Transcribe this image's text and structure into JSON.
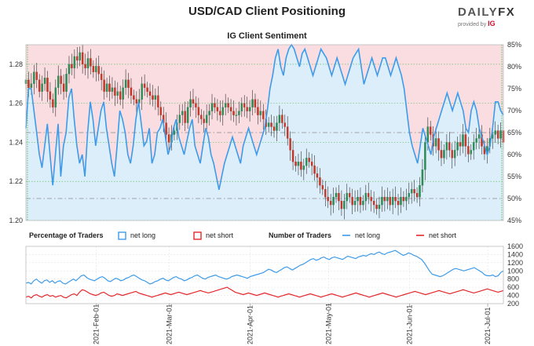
{
  "header": {
    "title": "USD/CAD Client Positioning",
    "subtitle": "IG Client Sentiment",
    "logo_daily": "DAILY",
    "logo_fx": "FX",
    "logo_provided": "provided by",
    "logo_ig": "IG"
  },
  "legend": {
    "percentage_title": "Percentage of Traders",
    "pct_net_long": "net long",
    "pct_net_short": "net short",
    "number_title": "Number of Traders",
    "num_net_long": "net long",
    "num_net_short": "net short"
  },
  "colors": {
    "long": "#3d9be9",
    "short": "#e3282b",
    "long_fill": "#ddeefb",
    "short_fill": "#f9dde1",
    "candle_up": "#2e8b57",
    "candle_down": "#c0392b",
    "grid_green": "#6abf69"
  },
  "chart_data": {
    "type": "line",
    "title": "USD/CAD Client Positioning",
    "subtitle": "IG Client Sentiment",
    "price_axis": {
      "ticks": [
        "1.28",
        "1.26",
        "1.24",
        "1.22",
        "1.20"
      ],
      "values": [
        1.28,
        1.26,
        1.24,
        1.22,
        1.2
      ],
      "ylim": [
        1.2,
        1.29
      ]
    },
    "percent_axis": {
      "ticks": [
        "85%",
        "80%",
        "75%",
        "70%",
        "65%",
        "60%",
        "55%",
        "50%",
        "45%"
      ],
      "values": [
        85,
        80,
        75,
        70,
        65,
        60,
        55,
        50,
        45
      ],
      "ylim": [
        45,
        85
      ]
    },
    "count_axis": {
      "ticks": [
        "1600",
        "1400",
        "1200",
        "1000",
        "800",
        "600",
        "400",
        "200"
      ],
      "values": [
        1600,
        1400,
        1200,
        1000,
        800,
        600,
        400,
        200
      ],
      "ylim": [
        200,
        1600
      ]
    },
    "x_ticks": [
      "2021-Feb-01",
      "2021-Mar-01",
      "2021-Apr-01",
      "2021-May-01",
      "2021-Jun-01",
      "2021-Jul-01"
    ],
    "x_tick_days": [
      27,
      55,
      86,
      116,
      147,
      177
    ],
    "x_range_days": [
      0,
      183
    ],
    "price_close": [
      1.272,
      1.268,
      1.27,
      1.276,
      1.272,
      1.266,
      1.27,
      1.273,
      1.266,
      1.262,
      1.258,
      1.268,
      1.274,
      1.27,
      1.266,
      1.275,
      1.28,
      1.278,
      1.284,
      1.282,
      1.286,
      1.28,
      1.278,
      1.283,
      1.279,
      1.276,
      1.279,
      1.275,
      1.272,
      1.266,
      1.27,
      1.266,
      1.268,
      1.264,
      1.266,
      1.262,
      1.268,
      1.272,
      1.268,
      1.264,
      1.262,
      1.26,
      1.262,
      1.27,
      1.268,
      1.266,
      1.264,
      1.262,
      1.264,
      1.258,
      1.254,
      1.25,
      1.244,
      1.24,
      1.244,
      1.246,
      1.25,
      1.254,
      1.256,
      1.25,
      1.258,
      1.262,
      1.26,
      1.258,
      1.254,
      1.252,
      1.25,
      1.254,
      1.256,
      1.26,
      1.258,
      1.256,
      1.254,
      1.258,
      1.26,
      1.258,
      1.256,
      1.254,
      1.254,
      1.256,
      1.26,
      1.258,
      1.256,
      1.258,
      1.262,
      1.258,
      1.254,
      1.256,
      1.252,
      1.248,
      1.25,
      1.248,
      1.246,
      1.25,
      1.254,
      1.25,
      1.248,
      1.242,
      1.236,
      1.23,
      1.228,
      1.23,
      1.226,
      1.228,
      1.232,
      1.23,
      1.228,
      1.224,
      1.222,
      1.218,
      1.216,
      1.212,
      1.21,
      1.208,
      1.212,
      1.214,
      1.21,
      1.206,
      1.21,
      1.214,
      1.212,
      1.208,
      1.21,
      1.212,
      1.208,
      1.21,
      1.214,
      1.212,
      1.21,
      1.208,
      1.206,
      1.208,
      1.212,
      1.21,
      1.212,
      1.208,
      1.212,
      1.21,
      1.208,
      1.212,
      1.21,
      1.212,
      1.214,
      1.216,
      1.214,
      1.212,
      1.218,
      1.226,
      1.24,
      1.248,
      1.244,
      1.238,
      1.242,
      1.236,
      1.232,
      1.236,
      1.24,
      1.236,
      1.232,
      1.236,
      1.24,
      1.238,
      1.244,
      1.238,
      1.234,
      1.236,
      1.24,
      1.242,
      1.244,
      1.238,
      1.234,
      1.238,
      1.242,
      1.244,
      1.246,
      1.242,
      1.246,
      1.24
    ],
    "net_long_pct": [
      66,
      75,
      75,
      70,
      65,
      60,
      57,
      62,
      67,
      60,
      53,
      60,
      67,
      55,
      62,
      65,
      73,
      75,
      68,
      62,
      58,
      60,
      55,
      65,
      72,
      68,
      62,
      66,
      70,
      72,
      66,
      62,
      58,
      55,
      62,
      70,
      68,
      65,
      60,
      58,
      62,
      68,
      72,
      67,
      62,
      63,
      66,
      58,
      60,
      65,
      66,
      68,
      64,
      60,
      62,
      66,
      68,
      64,
      62,
      60,
      63,
      66,
      68,
      62,
      60,
      58,
      62,
      66,
      64,
      60,
      58,
      55,
      52,
      55,
      58,
      60,
      62,
      64,
      62,
      60,
      58,
      62,
      64,
      66,
      64,
      62,
      60,
      62,
      64,
      66,
      70,
      75,
      78,
      82,
      84,
      80,
      78,
      82,
      84,
      85,
      84,
      82,
      80,
      83,
      84,
      82,
      80,
      78,
      80,
      82,
      84,
      83,
      82,
      80,
      78,
      80,
      82,
      80,
      78,
      76,
      78,
      80,
      82,
      83,
      84,
      80,
      76,
      78,
      80,
      82,
      80,
      78,
      80,
      82,
      82,
      80,
      78,
      80,
      82,
      80,
      78,
      75,
      70,
      65,
      62,
      60,
      58,
      62,
      66,
      64,
      62,
      60,
      64,
      66,
      68,
      70,
      72,
      74,
      72,
      70,
      72,
      74,
      72,
      70,
      66,
      65,
      70,
      72,
      70,
      66,
      64,
      62,
      60,
      62,
      66,
      72,
      72,
      70,
      69
    ],
    "net_long_count": [
      700,
      720,
      680,
      760,
      800,
      740,
      700,
      760,
      780,
      720,
      760,
      700,
      740,
      760,
      700,
      680,
      720,
      760,
      800,
      760,
      820,
      880,
      900,
      840,
      800,
      780,
      760,
      800,
      840,
      860,
      820,
      760,
      740,
      780,
      820,
      800,
      760,
      780,
      820,
      840,
      880,
      900,
      860,
      820,
      780,
      760,
      720,
      680,
      700,
      740,
      760,
      800,
      820,
      780,
      760,
      800,
      840,
      860,
      820,
      800,
      760,
      780,
      820,
      840,
      880,
      900,
      860,
      820,
      800,
      840,
      860,
      880,
      900,
      860,
      840,
      820,
      800,
      820,
      860,
      880,
      900,
      880,
      860,
      840,
      820,
      860,
      880,
      900,
      920,
      940,
      960,
      1000,
      1040,
      1020,
      980,
      960,
      1000,
      1040,
      1080,
      1100,
      1060,
      1020,
      1060,
      1100,
      1140,
      1160,
      1200,
      1240,
      1280,
      1300,
      1260,
      1280,
      1320,
      1340,
      1300,
      1280,
      1320,
      1340,
      1320,
      1300,
      1280,
      1320,
      1360,
      1340,
      1320,
      1300,
      1340,
      1360,
      1380,
      1360,
      1400,
      1420,
      1400,
      1440,
      1460,
      1420,
      1400,
      1440,
      1460,
      1480,
      1500,
      1460,
      1420,
      1380,
      1400,
      1440,
      1420,
      1380,
      1360,
      1320,
      1280,
      1200,
      1100,
      1000,
      920,
      900,
      880,
      860,
      880,
      920,
      960,
      1000,
      1040,
      1060,
      1040,
      1020,
      1000,
      1020,
      1040,
      1060,
      1080,
      1040,
      1000,
      960,
      900,
      880,
      880,
      900,
      860,
      880,
      960,
      1000
    ],
    "net_short_count": [
      360,
      380,
      340,
      400,
      420,
      380,
      360,
      400,
      420,
      380,
      400,
      360,
      380,
      400,
      360,
      340,
      380,
      420,
      440,
      400,
      480,
      540,
      520,
      480,
      440,
      420,
      400,
      420,
      460,
      480,
      440,
      400,
      380,
      400,
      440,
      420,
      400,
      420,
      440,
      460,
      480,
      500,
      460,
      440,
      420,
      400,
      380,
      360,
      380,
      400,
      420,
      440,
      460,
      440,
      420,
      440,
      460,
      480,
      460,
      440,
      420,
      440,
      460,
      480,
      500,
      520,
      500,
      480,
      460,
      480,
      500,
      520,
      540,
      560,
      580,
      600,
      560,
      520,
      480,
      460,
      440,
      420,
      440,
      460,
      440,
      420,
      400,
      420,
      440,
      460,
      440,
      420,
      400,
      380,
      360,
      380,
      400,
      420,
      440,
      420,
      400,
      380,
      360,
      380,
      400,
      420,
      440,
      420,
      400,
      380,
      360,
      380,
      400,
      420,
      440,
      420,
      400,
      380,
      360,
      380,
      400,
      420,
      440,
      460,
      440,
      420,
      400,
      380,
      360,
      380,
      400,
      420,
      440,
      460,
      440,
      420,
      400,
      380,
      360,
      380,
      400,
      420,
      440,
      460,
      480,
      500,
      480,
      460,
      440,
      420,
      440,
      460,
      480,
      500,
      520,
      500,
      480,
      460,
      440,
      460,
      480,
      500,
      520,
      540,
      520,
      500,
      480,
      460,
      480,
      500,
      520,
      540,
      560,
      540,
      520,
      500,
      480,
      500,
      520
    ]
  }
}
